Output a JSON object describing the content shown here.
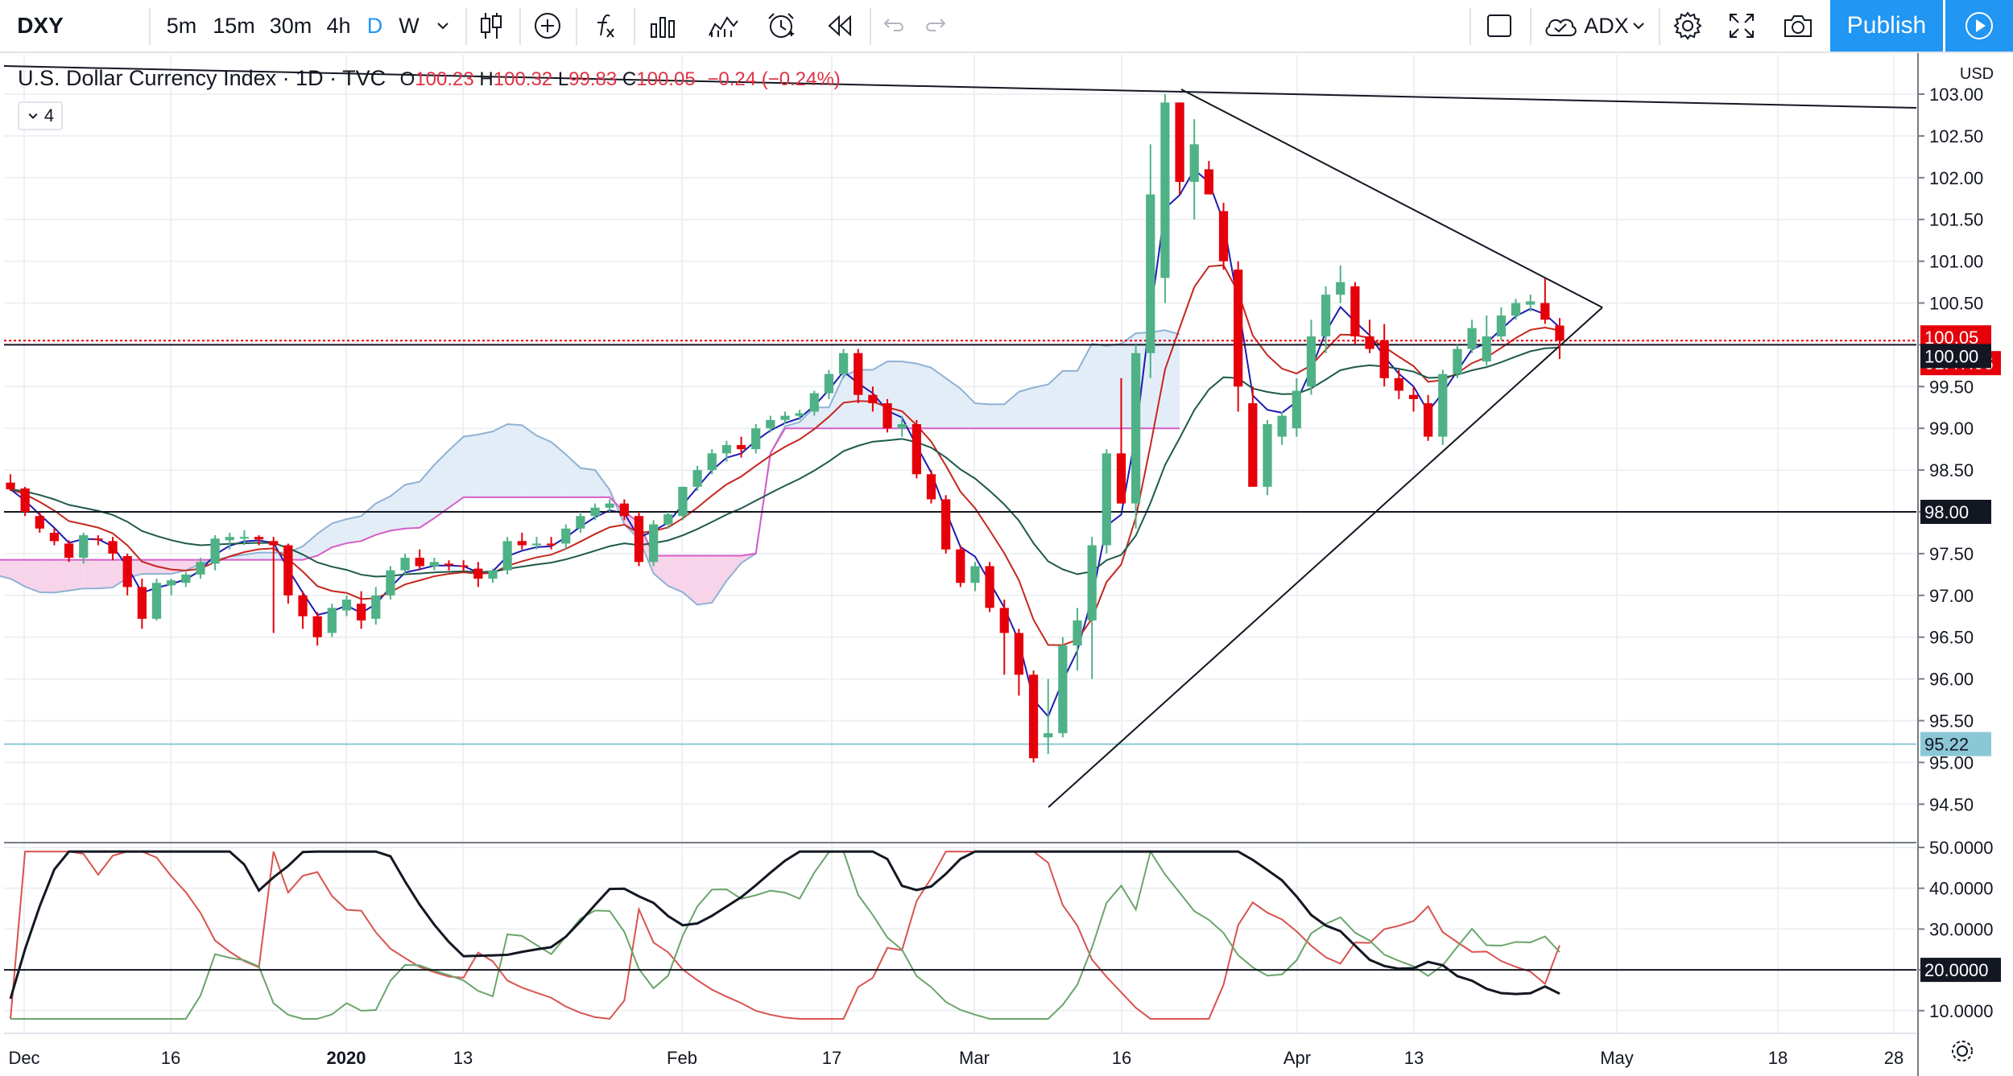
{
  "toolbar": {
    "symbol": "DXY",
    "intervals": [
      "5m",
      "15m",
      "30m",
      "4h",
      "D",
      "W"
    ],
    "active_interval": "D",
    "indicator_label": "ADX",
    "publish_label": "Publish",
    "icons": [
      "chevron-down-icon",
      "candles-icon",
      "plus-circle-icon",
      "fx-icon",
      "templates-icon",
      "compare-icon",
      "alert-icon",
      "replay-icon",
      "undo-icon",
      "redo-icon",
      "layout-icon",
      "cloud-icon",
      "gear-icon",
      "fullscreen-icon",
      "camera-icon",
      "play-icon"
    ]
  },
  "legend": {
    "title": "U.S. Dollar Currency Index · 1D · TVC",
    "open_label": "O",
    "open": "100.23",
    "high_label": "H",
    "high": "100.32",
    "low_label": "L",
    "low": "99.83",
    "close_label": "C",
    "close": "100.05",
    "change": "−0.24 (−0.24%)",
    "indicator_count": "4"
  },
  "axis": {
    "currency": "USD",
    "price_ticks": [
      "103.00",
      "102.50",
      "102.00",
      "101.50",
      "101.00",
      "100.50",
      "100.00",
      "99.50",
      "99.00",
      "98.50",
      "98.00",
      "97.50",
      "97.00",
      "96.50",
      "96.00",
      "95.50",
      "95.00",
      "94.50"
    ],
    "adx_ticks": [
      "50.0000",
      "40.0000",
      "30.0000",
      "20.0000",
      "10.0000"
    ],
    "date_ticks": [
      "Dec",
      "16",
      "2020",
      "13",
      "Feb",
      "17",
      "Mar",
      "16",
      "Apr",
      "13",
      "May",
      "18",
      "28"
    ]
  },
  "badges": {
    "last_price": "100.05",
    "countdown": "01:47:06",
    "level_100": "100.00",
    "level_98": "98.00",
    "level_9522": "95.22",
    "adx_level": "20.0000"
  },
  "colors": {
    "up": "#4fb286",
    "down": "#e5000a",
    "accent": "#2196f3",
    "kijun_cloud_red": "#f7d4ea",
    "cloud_blue": "#e3edf7",
    "ma_fast": "#1c1cb3",
    "ma_mid": "#c4271f",
    "ma_slow": "#1f5a4a"
  },
  "chart_data": {
    "type": "candlestick",
    "y_unit": "USD",
    "ylim": [
      94.3,
      103.2
    ],
    "adx_ylim": [
      7,
      52
    ],
    "candles": [
      {
        "date": "2019-11-29",
        "o": 98.35,
        "h": 98.45,
        "l": 98.25,
        "c": 98.27
      },
      {
        "date": "2019-12-02",
        "o": 98.28,
        "h": 98.3,
        "l": 97.95,
        "c": 98.0
      },
      {
        "date": "2019-12-03",
        "o": 97.95,
        "h": 98.0,
        "l": 97.75,
        "c": 97.8
      },
      {
        "date": "2019-12-04",
        "o": 97.75,
        "h": 97.8,
        "l": 97.6,
        "c": 97.65
      },
      {
        "date": "2019-12-05",
        "o": 97.62,
        "h": 97.66,
        "l": 97.4,
        "c": 97.45
      },
      {
        "date": "2019-12-06",
        "o": 97.45,
        "h": 97.75,
        "l": 97.38,
        "c": 97.72
      },
      {
        "date": "2019-12-09",
        "o": 97.68,
        "h": 97.72,
        "l": 97.6,
        "c": 97.67
      },
      {
        "date": "2019-12-10",
        "o": 97.65,
        "h": 97.7,
        "l": 97.42,
        "c": 97.5
      },
      {
        "date": "2019-12-11",
        "o": 97.47,
        "h": 97.5,
        "l": 97.0,
        "c": 97.1
      },
      {
        "date": "2019-12-12",
        "o": 97.1,
        "h": 97.2,
        "l": 96.6,
        "c": 96.72
      },
      {
        "date": "2019-12-13",
        "o": 96.72,
        "h": 97.2,
        "l": 96.7,
        "c": 97.15
      },
      {
        "date": "2019-12-16",
        "o": 97.12,
        "h": 97.2,
        "l": 97.0,
        "c": 97.18
      },
      {
        "date": "2019-12-17",
        "o": 97.15,
        "h": 97.28,
        "l": 97.1,
        "c": 97.25
      },
      {
        "date": "2019-12-18",
        "o": 97.25,
        "h": 97.45,
        "l": 97.2,
        "c": 97.4
      },
      {
        "date": "2019-12-19",
        "o": 97.38,
        "h": 97.72,
        "l": 97.3,
        "c": 97.68
      },
      {
        "date": "2019-12-20",
        "o": 97.66,
        "h": 97.75,
        "l": 97.55,
        "c": 97.7
      },
      {
        "date": "2019-12-23",
        "o": 97.68,
        "h": 97.78,
        "l": 97.6,
        "c": 97.7
      },
      {
        "date": "2019-12-24",
        "o": 97.7,
        "h": 97.72,
        "l": 97.6,
        "c": 97.67
      },
      {
        "date": "2019-12-26",
        "o": 97.65,
        "h": 97.7,
        "l": 96.55,
        "c": 97.6
      },
      {
        "date": "2019-12-27",
        "o": 97.6,
        "h": 97.62,
        "l": 96.9,
        "c": 97.0
      },
      {
        "date": "2019-12-30",
        "o": 97.0,
        "h": 97.05,
        "l": 96.6,
        "c": 96.75
      },
      {
        "date": "2019-12-31",
        "o": 96.75,
        "h": 96.8,
        "l": 96.4,
        "c": 96.5
      },
      {
        "date": "2020-01-02",
        "o": 96.55,
        "h": 96.9,
        "l": 96.5,
        "c": 96.85
      },
      {
        "date": "2020-01-03",
        "o": 96.82,
        "h": 97.0,
        "l": 96.75,
        "c": 96.95
      },
      {
        "date": "2020-01-06",
        "o": 96.9,
        "h": 97.05,
        "l": 96.6,
        "c": 96.7
      },
      {
        "date": "2020-01-07",
        "o": 96.72,
        "h": 97.1,
        "l": 96.65,
        "c": 97.0
      },
      {
        "date": "2020-01-08",
        "o": 97.0,
        "h": 97.35,
        "l": 96.95,
        "c": 97.3
      },
      {
        "date": "2020-01-09",
        "o": 97.3,
        "h": 97.5,
        "l": 97.25,
        "c": 97.45
      },
      {
        "date": "2020-01-10",
        "o": 97.45,
        "h": 97.55,
        "l": 97.3,
        "c": 97.35
      },
      {
        "date": "2020-01-13",
        "o": 97.35,
        "h": 97.45,
        "l": 97.3,
        "c": 97.4
      },
      {
        "date": "2020-01-14",
        "o": 97.38,
        "h": 97.42,
        "l": 97.3,
        "c": 97.36
      },
      {
        "date": "2020-01-15",
        "o": 97.36,
        "h": 97.42,
        "l": 97.28,
        "c": 97.34
      },
      {
        "date": "2020-01-16",
        "o": 97.32,
        "h": 97.4,
        "l": 97.1,
        "c": 97.2
      },
      {
        "date": "2020-01-17",
        "o": 97.2,
        "h": 97.32,
        "l": 97.15,
        "c": 97.3
      },
      {
        "date": "2020-01-20",
        "o": 97.3,
        "h": 97.7,
        "l": 97.25,
        "c": 97.65
      },
      {
        "date": "2020-01-21",
        "o": 97.65,
        "h": 97.75,
        "l": 97.55,
        "c": 97.6
      },
      {
        "date": "2020-01-22",
        "o": 97.6,
        "h": 97.7,
        "l": 97.55,
        "c": 97.62
      },
      {
        "date": "2020-01-23",
        "o": 97.62,
        "h": 97.7,
        "l": 97.55,
        "c": 97.6
      },
      {
        "date": "2020-01-24",
        "o": 97.62,
        "h": 97.85,
        "l": 97.55,
        "c": 97.8
      },
      {
        "date": "2020-01-27",
        "o": 97.8,
        "h": 98.0,
        "l": 97.75,
        "c": 97.95
      },
      {
        "date": "2020-01-28",
        "o": 97.95,
        "h": 98.1,
        "l": 97.9,
        "c": 98.05
      },
      {
        "date": "2020-01-29",
        "o": 98.05,
        "h": 98.15,
        "l": 98.0,
        "c": 98.1
      },
      {
        "date": "2020-01-30",
        "o": 98.1,
        "h": 98.15,
        "l": 97.9,
        "c": 97.95
      },
      {
        "date": "2020-01-31",
        "o": 97.95,
        "h": 98.0,
        "l": 97.35,
        "c": 97.4
      },
      {
        "date": "2020-02-03",
        "o": 97.4,
        "h": 97.9,
        "l": 97.35,
        "c": 97.85
      },
      {
        "date": "2020-02-04",
        "o": 97.85,
        "h": 98.0,
        "l": 97.8,
        "c": 97.97
      },
      {
        "date": "2020-02-05",
        "o": 97.95,
        "h": 98.3,
        "l": 97.9,
        "c": 98.3
      },
      {
        "date": "2020-02-06",
        "o": 98.3,
        "h": 98.55,
        "l": 98.25,
        "c": 98.5
      },
      {
        "date": "2020-02-07",
        "o": 98.5,
        "h": 98.75,
        "l": 98.45,
        "c": 98.7
      },
      {
        "date": "2020-02-10",
        "o": 98.7,
        "h": 98.85,
        "l": 98.6,
        "c": 98.8
      },
      {
        "date": "2020-02-11",
        "o": 98.8,
        "h": 98.9,
        "l": 98.65,
        "c": 98.75
      },
      {
        "date": "2020-02-12",
        "o": 98.75,
        "h": 99.05,
        "l": 98.7,
        "c": 99.0
      },
      {
        "date": "2020-02-13",
        "o": 99.0,
        "h": 99.15,
        "l": 98.95,
        "c": 99.1
      },
      {
        "date": "2020-02-14",
        "o": 99.1,
        "h": 99.2,
        "l": 99.05,
        "c": 99.15
      },
      {
        "date": "2020-02-17",
        "o": 99.15,
        "h": 99.22,
        "l": 99.1,
        "c": 99.18
      },
      {
        "date": "2020-02-18",
        "o": 99.2,
        "h": 99.45,
        "l": 99.15,
        "c": 99.42
      },
      {
        "date": "2020-02-19",
        "o": 99.42,
        "h": 99.7,
        "l": 99.35,
        "c": 99.65
      },
      {
        "date": "2020-02-20",
        "o": 99.65,
        "h": 99.95,
        "l": 99.6,
        "c": 99.9
      },
      {
        "date": "2020-02-21",
        "o": 99.9,
        "h": 99.95,
        "l": 99.3,
        "c": 99.4
      },
      {
        "date": "2020-02-24",
        "o": 99.4,
        "h": 99.5,
        "l": 99.2,
        "c": 99.3
      },
      {
        "date": "2020-02-25",
        "o": 99.3,
        "h": 99.35,
        "l": 98.95,
        "c": 99.0
      },
      {
        "date": "2020-02-26",
        "o": 99.0,
        "h": 99.15,
        "l": 98.9,
        "c": 99.05
      },
      {
        "date": "2020-02-27",
        "o": 99.05,
        "h": 99.1,
        "l": 98.4,
        "c": 98.45
      },
      {
        "date": "2020-02-28",
        "o": 98.45,
        "h": 98.5,
        "l": 98.1,
        "c": 98.15
      },
      {
        "date": "2020-03-02",
        "o": 98.15,
        "h": 98.2,
        "l": 97.5,
        "c": 97.55
      },
      {
        "date": "2020-03-03",
        "o": 97.55,
        "h": 97.6,
        "l": 97.1,
        "c": 97.15
      },
      {
        "date": "2020-03-04",
        "o": 97.15,
        "h": 97.4,
        "l": 97.05,
        "c": 97.35
      },
      {
        "date": "2020-03-05",
        "o": 97.35,
        "h": 97.4,
        "l": 96.8,
        "c": 96.85
      },
      {
        "date": "2020-03-06",
        "o": 96.85,
        "h": 96.95,
        "l": 96.05,
        "c": 96.55
      },
      {
        "date": "2020-03-09",
        "o": 96.55,
        "h": 96.6,
        "l": 95.8,
        "c": 96.05
      },
      {
        "date": "2020-03-10",
        "o": 96.05,
        "h": 96.1,
        "l": 95.0,
        "c": 95.05
      },
      {
        "date": "2020-03-11",
        "o": 95.3,
        "h": 96.0,
        "l": 95.1,
        "c": 95.35
      },
      {
        "date": "2020-03-12",
        "o": 95.35,
        "h": 96.5,
        "l": 95.3,
        "c": 96.4
      },
      {
        "date": "2020-03-13",
        "o": 96.4,
        "h": 96.85,
        "l": 96.1,
        "c": 96.7
      },
      {
        "date": "2020-03-16",
        "o": 96.7,
        "h": 97.7,
        "l": 96.0,
        "c": 97.6
      },
      {
        "date": "2020-03-17",
        "o": 97.6,
        "h": 98.75,
        "l": 97.5,
        "c": 98.7
      },
      {
        "date": "2020-03-18",
        "o": 98.7,
        "h": 99.6,
        "l": 98.1,
        "c": 98.1
      },
      {
        "date": "2020-03-19",
        "o": 98.1,
        "h": 100.0,
        "l": 97.8,
        "c": 99.9
      },
      {
        "date": "2020-03-20",
        "o": 99.9,
        "h": 102.4,
        "l": 99.6,
        "c": 101.8
      },
      {
        "date": "2020-03-23",
        "o": 100.8,
        "h": 103.0,
        "l": 100.5,
        "c": 102.9
      },
      {
        "date": "2020-03-24",
        "o": 102.9,
        "h": 102.9,
        "l": 101.8,
        "c": 101.95
      },
      {
        "date": "2020-03-25",
        "o": 101.95,
        "h": 102.7,
        "l": 101.5,
        "c": 102.4
      },
      {
        "date": "2020-03-26",
        "o": 102.1,
        "h": 102.2,
        "l": 101.8,
        "c": 101.8
      },
      {
        "date": "2020-03-27",
        "o": 101.6,
        "h": 101.7,
        "l": 100.9,
        "c": 101.0
      },
      {
        "date": "2020-03-30",
        "o": 100.9,
        "h": 101.0,
        "l": 99.2,
        "c": 99.5
      },
      {
        "date": "2020-03-31",
        "o": 99.3,
        "h": 99.5,
        "l": 98.3,
        "c": 98.3
      },
      {
        "date": "2020-04-01",
        "o": 98.3,
        "h": 99.1,
        "l": 98.2,
        "c": 99.05
      },
      {
        "date": "2020-04-02",
        "o": 98.9,
        "h": 99.2,
        "l": 98.8,
        "c": 99.15
      },
      {
        "date": "2020-04-03",
        "o": 99.0,
        "h": 99.6,
        "l": 98.9,
        "c": 99.45
      },
      {
        "date": "2020-04-06",
        "o": 99.5,
        "h": 100.3,
        "l": 99.4,
        "c": 100.1
      },
      {
        "date": "2020-04-07",
        "o": 100.1,
        "h": 100.7,
        "l": 99.9,
        "c": 100.6
      },
      {
        "date": "2020-04-08",
        "o": 100.6,
        "h": 100.95,
        "l": 100.5,
        "c": 100.75
      },
      {
        "date": "2020-04-09",
        "o": 100.7,
        "h": 100.75,
        "l": 100.0,
        "c": 100.1
      },
      {
        "date": "2020-04-10",
        "o": 100.1,
        "h": 100.3,
        "l": 99.9,
        "c": 99.95
      },
      {
        "date": "2020-04-13",
        "o": 100.05,
        "h": 100.25,
        "l": 99.5,
        "c": 99.6
      },
      {
        "date": "2020-04-14",
        "o": 99.6,
        "h": 99.7,
        "l": 99.35,
        "c": 99.45
      },
      {
        "date": "2020-04-15",
        "o": 99.4,
        "h": 99.5,
        "l": 99.2,
        "c": 99.35
      },
      {
        "date": "2020-04-16",
        "o": 99.3,
        "h": 99.4,
        "l": 98.85,
        "c": 98.9
      },
      {
        "date": "2020-04-17",
        "o": 98.9,
        "h": 99.7,
        "l": 98.8,
        "c": 99.65
      },
      {
        "date": "2020-04-20",
        "o": 99.65,
        "h": 100.0,
        "l": 99.6,
        "c": 99.95
      },
      {
        "date": "2020-04-21",
        "o": 99.95,
        "h": 100.3,
        "l": 99.9,
        "c": 100.2
      },
      {
        "date": "2020-04-22",
        "o": 99.8,
        "h": 100.35,
        "l": 99.75,
        "c": 100.1
      },
      {
        "date": "2020-04-23",
        "o": 100.1,
        "h": 100.45,
        "l": 100.05,
        "c": 100.35
      },
      {
        "date": "2020-04-24",
        "o": 100.35,
        "h": 100.55,
        "l": 100.3,
        "c": 100.5
      },
      {
        "date": "2020-04-27",
        "o": 100.48,
        "h": 100.6,
        "l": 100.4,
        "c": 100.52
      },
      {
        "date": "2020-04-28",
        "o": 100.5,
        "h": 100.8,
        "l": 100.25,
        "c": 100.3
      },
      {
        "date": "2020-04-29",
        "o": 100.23,
        "h": 100.32,
        "l": 99.83,
        "c": 100.05
      }
    ],
    "horizontal_levels": [
      100.0,
      98.0,
      95.22,
      100.05
    ],
    "adx_level": 20
  }
}
